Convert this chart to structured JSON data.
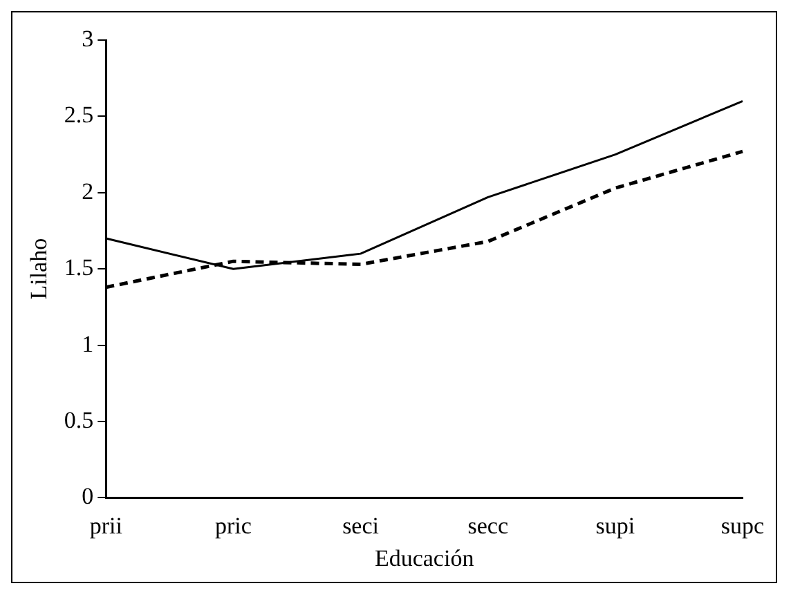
{
  "chart_data": {
    "type": "line",
    "xlabel": "Educación",
    "ylabel": "Lilaho",
    "categories": [
      "prii",
      "pric",
      "seci",
      "secc",
      "supi",
      "supc"
    ],
    "series": [
      {
        "color": "#000000",
        "line_style": "solid",
        "values": [
          1.7,
          1.5,
          1.6,
          1.97,
          2.25,
          2.6
        ]
      },
      {
        "color": "#000000",
        "line_style": "dashed",
        "values": [
          1.38,
          1.55,
          1.53,
          1.68,
          2.03,
          2.27
        ]
      }
    ],
    "ylim": [
      0,
      3
    ],
    "yticks": [
      0,
      0.5,
      1,
      1.5,
      2,
      2.5,
      3
    ],
    "grid": false,
    "legend": false,
    "marker": "none"
  }
}
